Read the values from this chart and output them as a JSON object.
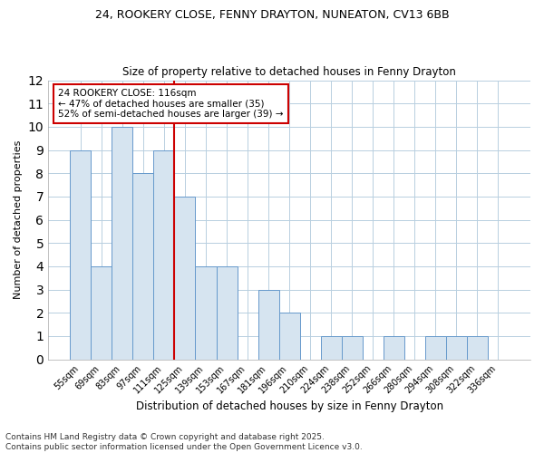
{
  "title1": "24, ROOKERY CLOSE, FENNY DRAYTON, NUNEATON, CV13 6BB",
  "title2": "Size of property relative to detached houses in Fenny Drayton",
  "xlabel": "Distribution of detached houses by size in Fenny Drayton",
  "ylabel": "Number of detached properties",
  "categories": [
    "55sqm",
    "69sqm",
    "83sqm",
    "97sqm",
    "111sqm",
    "125sqm",
    "139sqm",
    "153sqm",
    "167sqm",
    "181sqm",
    "196sqm",
    "210sqm",
    "224sqm",
    "238sqm",
    "252sqm",
    "266sqm",
    "280sqm",
    "294sqm",
    "308sqm",
    "322sqm",
    "336sqm"
  ],
  "values": [
    9,
    4,
    10,
    8,
    9,
    7,
    4,
    4,
    0,
    3,
    2,
    0,
    1,
    1,
    0,
    1,
    0,
    1,
    1,
    1,
    0
  ],
  "bar_color": "#d6e4f0",
  "bar_edge_color": "#6699cc",
  "grid_color": "#b8cfe0",
  "property_line_x": 4.5,
  "annotation_text": "24 ROOKERY CLOSE: 116sqm\n← 47% of detached houses are smaller (35)\n52% of semi-detached houses are larger (39) →",
  "annotation_box_color": "#ffffff",
  "annotation_box_edge": "#cc0000",
  "property_line_color": "#cc0000",
  "ylim": [
    0,
    12
  ],
  "yticks": [
    0,
    1,
    2,
    3,
    4,
    5,
    6,
    7,
    8,
    9,
    10,
    11,
    12
  ],
  "footer": "Contains HM Land Registry data © Crown copyright and database right 2025.\nContains public sector information licensed under the Open Government Licence v3.0.",
  "bg_color": "#ffffff",
  "plot_bg_color": "#ffffff",
  "title_fontsize": 9,
  "subtitle_fontsize": 8.5,
  "tick_fontsize": 7,
  "ylabel_fontsize": 8,
  "xlabel_fontsize": 8.5,
  "footer_fontsize": 6.5,
  "annotation_fontsize": 7.5
}
